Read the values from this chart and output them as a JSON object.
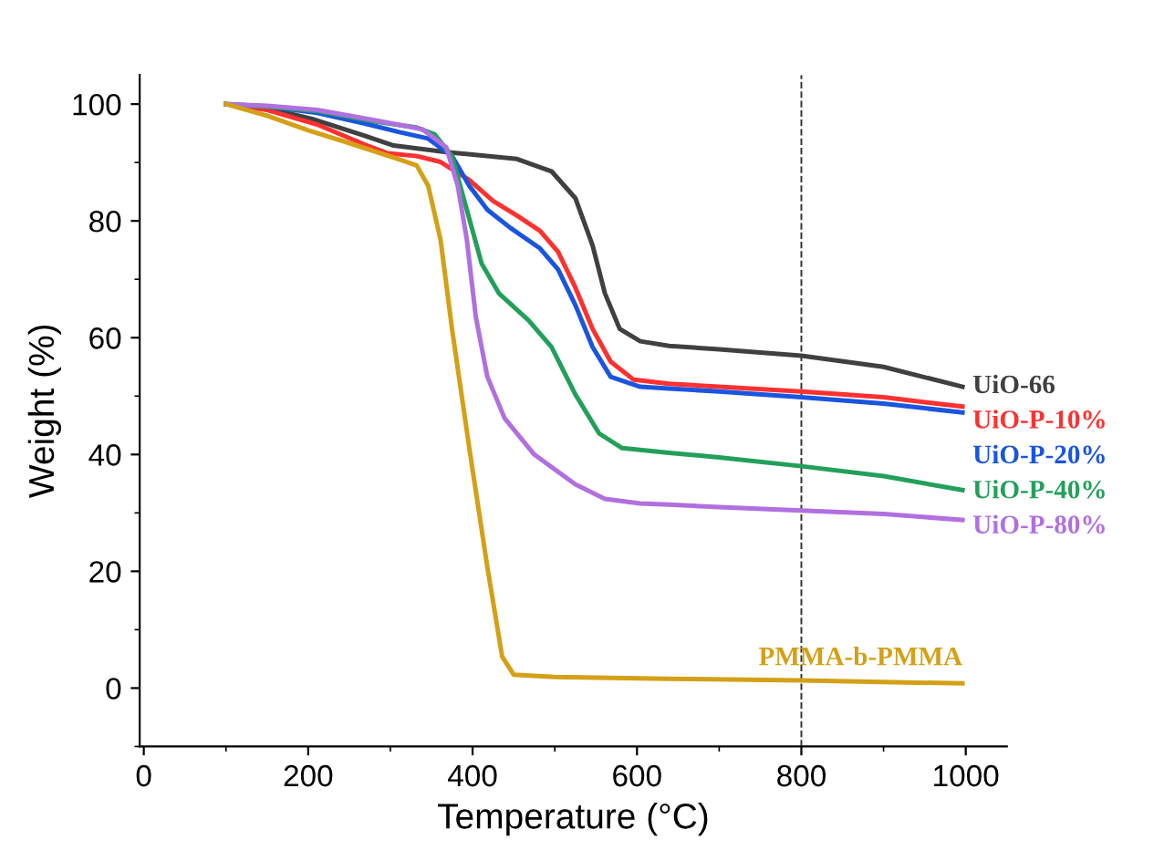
{
  "chart_data": {
    "type": "line",
    "xlabel": "Temperature (°C)",
    "ylabel": "Weight (%)",
    "xlim": [
      -5,
      1050
    ],
    "ylim": [
      -10,
      105
    ],
    "xticks": [
      0,
      200,
      400,
      600,
      800,
      1000
    ],
    "yticks": [
      0,
      20,
      40,
      60,
      80,
      100
    ],
    "grid": false,
    "legend": false,
    "marker": "none",
    "line_style": "solid",
    "ref_lines": [
      {
        "axis": "x",
        "value": 800,
        "color": "#333333",
        "line_style": "dashed"
      }
    ],
    "series": [
      {
        "name": "UiO-66",
        "color": "#404040",
        "x": [
          100,
          150,
          204,
          268,
          304,
          368,
          454,
          496,
          525,
          546,
          561,
          579,
          604,
          639,
          700,
          800,
          900,
          996
        ],
        "values": [
          100,
          99.3,
          97.5,
          94.6,
          92.9,
          91.8,
          90.6,
          88.5,
          83.9,
          75.8,
          67.6,
          61.5,
          59.4,
          58.6,
          58,
          56.9,
          55,
          51.6
        ]
      },
      {
        "name": "UiO-P-10%",
        "color": "#ff3030",
        "x": [
          100,
          150,
          211,
          268,
          296,
          332,
          361,
          396,
          425,
          454,
          482,
          504,
          525,
          546,
          568,
          596,
          639,
          700,
          800,
          900,
          996
        ],
        "values": [
          100,
          99,
          96.5,
          93.1,
          91.6,
          91.1,
          90.1,
          87,
          83.4,
          80.9,
          78.3,
          74.7,
          68.6,
          61.5,
          55.9,
          52.8,
          52.1,
          51.6,
          50.8,
          49.8,
          48.2
        ]
      },
      {
        "name": "UiO-P-20%",
        "color": "#1a55e0",
        "x": [
          100,
          150,
          211,
          268,
          311,
          346,
          375,
          396,
          418,
          446,
          482,
          504,
          525,
          546,
          568,
          604,
          639,
          700,
          800,
          900,
          996
        ],
        "values": [
          100,
          99.6,
          98.5,
          96.7,
          95.2,
          94.1,
          91.1,
          86,
          81.9,
          78.8,
          75.3,
          71.7,
          65.6,
          58.4,
          53.3,
          51.6,
          51.3,
          50.8,
          49.8,
          48.7,
          47.2
        ]
      },
      {
        "name": "UiO-P-40%",
        "color": "#22a05a",
        "x": [
          100,
          150,
          211,
          282,
          332,
          354,
          375,
          393,
          411,
          432,
          468,
          496,
          525,
          554,
          582,
          639,
          700,
          800,
          900,
          996
        ],
        "values": [
          100,
          99.6,
          98.8,
          97,
          96,
          94.8,
          91.1,
          81.9,
          72.7,
          67.6,
          63,
          58.4,
          50.3,
          43.6,
          41.1,
          40.3,
          39.5,
          38,
          36.3,
          33.9
        ]
      },
      {
        "name": "UiO-P-80%",
        "color": "#b070e0",
        "x": [
          100,
          150,
          211,
          282,
          339,
          368,
          382,
          393,
          404,
          418,
          439,
          475,
          525,
          561,
          604,
          639,
          700,
          800,
          900,
          996
        ],
        "values": [
          100,
          99.7,
          99,
          97.2,
          95.7,
          92.6,
          86,
          76.8,
          63.5,
          53.3,
          46.2,
          40,
          34.9,
          32.4,
          31.6,
          31.4,
          31,
          30.4,
          29.8,
          28.8
        ]
      },
      {
        "name": "PMMA-b-PMMA",
        "color": "#d4a017",
        "x": [
          100,
          150,
          200,
          246,
          311,
          332,
          346,
          361,
          375,
          396,
          418,
          436,
          450,
          500,
          639,
          800,
          996
        ],
        "values": [
          100,
          98,
          95.5,
          93.5,
          90.5,
          89.5,
          86,
          76.8,
          61.5,
          41.1,
          20.7,
          5.4,
          2.3,
          1.9,
          1.6,
          1.3,
          0.8
        ]
      }
    ]
  }
}
